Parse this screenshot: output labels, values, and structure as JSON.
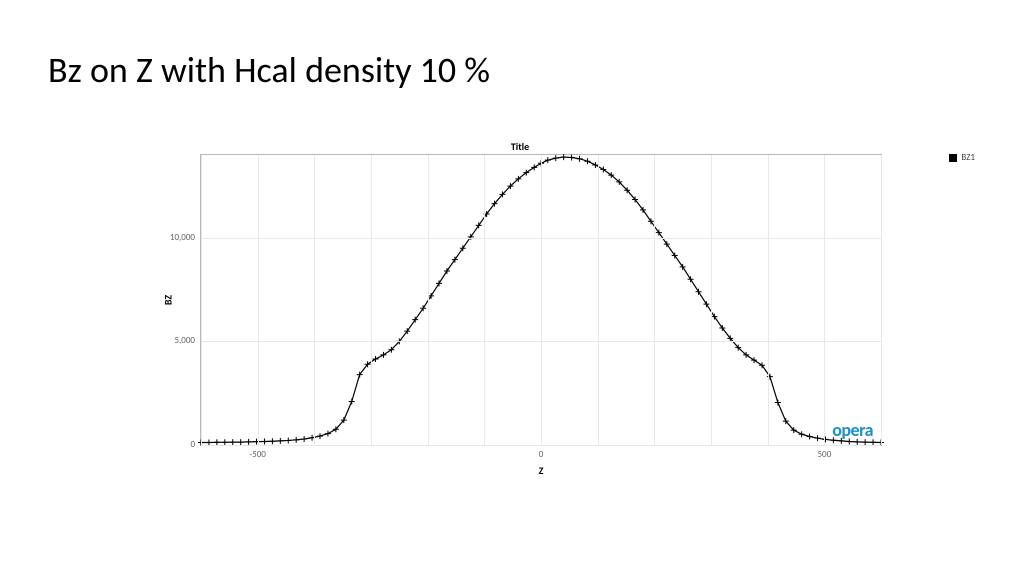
{
  "slide": {
    "title": "Bz on Z with Hcal density 10 %"
  },
  "chart": {
    "type": "line-with-markers",
    "title": "Title",
    "xlabel": "Z",
    "ylabel": "BZ",
    "xlim": [
      -600,
      600
    ],
    "ylim": [
      0,
      14000
    ],
    "xticks": [
      {
        "value": -600,
        "label": ""
      },
      {
        "value": -500,
        "label": "-500"
      },
      {
        "value": -400,
        "label": ""
      },
      {
        "value": -300,
        "label": ""
      },
      {
        "value": -200,
        "label": ""
      },
      {
        "value": -100,
        "label": ""
      },
      {
        "value": 0,
        "label": "0"
      },
      {
        "value": 100,
        "label": ""
      },
      {
        "value": 200,
        "label": ""
      },
      {
        "value": 300,
        "label": ""
      },
      {
        "value": 400,
        "label": ""
      },
      {
        "value": 500,
        "label": "500"
      },
      {
        "value": 600,
        "label": ""
      }
    ],
    "yticks": [
      {
        "value": 0,
        "label": "0"
      },
      {
        "value": 5000,
        "label": "5,000"
      },
      {
        "value": 10000,
        "label": "10,000"
      }
    ],
    "grid_color": "#e8e8e8",
    "axis_color": "#b8b8b8",
    "background_color": "#ffffff",
    "series": [
      {
        "name": "BZ1",
        "line_color": "#000000",
        "line_width": 1.2,
        "marker": "plus",
        "marker_size": 3,
        "marker_color": "#000000",
        "x": [
          -600,
          -586,
          -572,
          -558,
          -544,
          -530,
          -516,
          -502,
          -488,
          -474,
          -460,
          -446,
          -432,
          -418,
          -404,
          -390,
          -376,
          -362,
          -348,
          -334,
          -320,
          -306,
          -292,
          -278,
          -264,
          -250,
          -236,
          -222,
          -208,
          -194,
          -180,
          -166,
          -152,
          -138,
          -124,
          -110,
          -96,
          -82,
          -68,
          -54,
          -40,
          -26,
          -12,
          0,
          12,
          26,
          40,
          54,
          68,
          82,
          96,
          110,
          124,
          138,
          152,
          166,
          180,
          194,
          208,
          222,
          236,
          250,
          264,
          278,
          292,
          306,
          320,
          334,
          348,
          362,
          376,
          390,
          404,
          418,
          432,
          446,
          460,
          474,
          488,
          502,
          516,
          530,
          544,
          558,
          572,
          586,
          600
        ],
        "y": [
          120,
          120,
          130,
          130,
          140,
          140,
          150,
          160,
          170,
          180,
          200,
          220,
          250,
          290,
          350,
          430,
          550,
          760,
          1200,
          2100,
          3400,
          3900,
          4150,
          4350,
          4600,
          5000,
          5500,
          6050,
          6600,
          7200,
          7800,
          8400,
          8950,
          9500,
          10050,
          10600,
          11150,
          11650,
          12100,
          12500,
          12850,
          13150,
          13400,
          13600,
          13750,
          13850,
          13900,
          13880,
          13820,
          13700,
          13520,
          13300,
          13030,
          12700,
          12300,
          11850,
          11350,
          10800,
          10250,
          9700,
          9150,
          8600,
          8000,
          7400,
          6800,
          6200,
          5650,
          5150,
          4700,
          4350,
          4100,
          3850,
          3300,
          2050,
          1150,
          720,
          520,
          410,
          330,
          270,
          230,
          200,
          170,
          150,
          140,
          130,
          120
        ]
      }
    ],
    "legend_label": "BZ1",
    "logo": {
      "text": "opera",
      "color": "#1d90c9"
    },
    "tick_fontsize": 9,
    "title_fontsize": 10,
    "label_fontsize": 10
  }
}
